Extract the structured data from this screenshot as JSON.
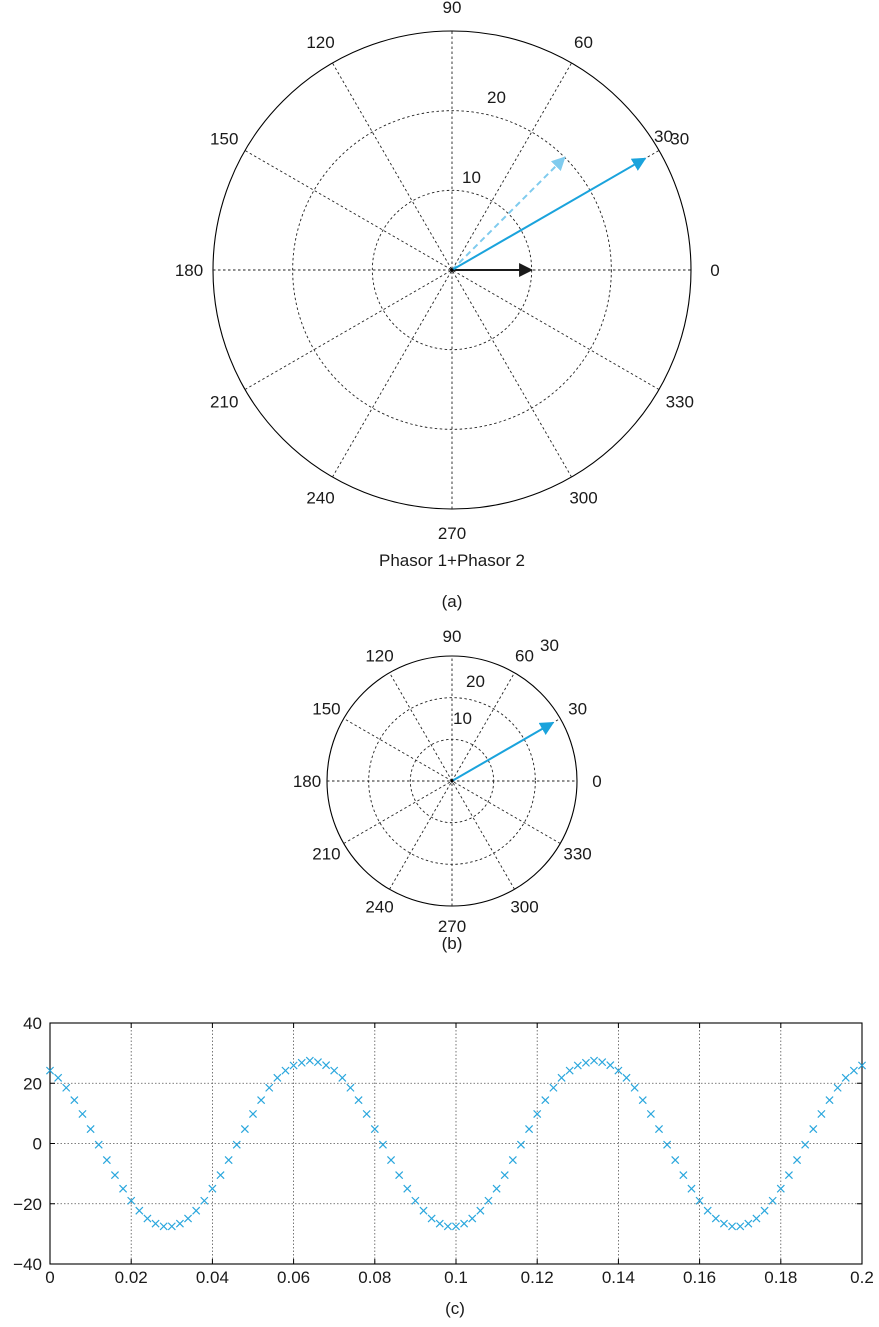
{
  "colors": {
    "phasor_cyan": "#1aa3dc",
    "phasor_light": "#7fcbee",
    "phasor_black": "#1a1a1a",
    "axis": "#000000",
    "grid": "#222222",
    "scatter": "#2ba7dd"
  },
  "chart_data": [
    {
      "id": "a",
      "type": "polar",
      "panel_label": "(a)",
      "title": "Phasor 1+Phasor 2",
      "rmax": 30,
      "rings": [
        10,
        20,
        30
      ],
      "ring_labels": [
        "10",
        "20",
        "30"
      ],
      "angle_labels": [
        "0",
        "30",
        "60",
        "90",
        "120",
        "150",
        "180",
        "210",
        "240",
        "270",
        "300",
        "330"
      ],
      "grid": true,
      "phasors": [
        {
          "magnitude": 10,
          "angle_deg": 0,
          "style": "solid",
          "color": "#1a1a1a"
        },
        {
          "magnitude": 20,
          "angle_deg": 45,
          "style": "dashed",
          "color": "#7fcbee"
        },
        {
          "magnitude": 28,
          "angle_deg": 30,
          "style": "solid",
          "color": "#1aa3dc"
        }
      ]
    },
    {
      "id": "b",
      "type": "polar",
      "panel_label": "(b)",
      "title": "",
      "rmax": 30,
      "rings": [
        10,
        20,
        30
      ],
      "ring_labels": [
        "10",
        "20",
        "30"
      ],
      "angle_labels": [
        "0",
        "30",
        "60",
        "90",
        "120",
        "150",
        "180",
        "210",
        "240",
        "270",
        "300",
        "330"
      ],
      "grid": true,
      "phasors": [
        {
          "magnitude": 28,
          "angle_deg": 30,
          "style": "solid",
          "color": "#1aa3dc"
        }
      ]
    },
    {
      "id": "c",
      "type": "scatter",
      "panel_label": "(c)",
      "title": "",
      "xlabel": "",
      "ylabel": "",
      "xlim": [
        0,
        0.2
      ],
      "ylim": [
        -40,
        40
      ],
      "xticks": [
        0,
        0.02,
        0.04,
        0.06,
        0.08,
        0.1,
        0.12,
        0.14,
        0.16,
        0.18,
        0.2
      ],
      "xtick_labels": [
        "0",
        "0.02",
        "0.04",
        "0.06",
        "0.08",
        "0.1",
        "0.12",
        "0.14",
        "0.16",
        "0.18",
        "0.2"
      ],
      "yticks": [
        -40,
        -20,
        0,
        20,
        40
      ],
      "ytick_labels": [
        "−40",
        "−20",
        "0",
        "20",
        "40"
      ],
      "grid": true,
      "marker": "x",
      "x": [
        0.0,
        0.002,
        0.004,
        0.006,
        0.008,
        0.01,
        0.012,
        0.014,
        0.016,
        0.018,
        0.02,
        0.022,
        0.024,
        0.026,
        0.028,
        0.03,
        0.032,
        0.034,
        0.036,
        0.038,
        0.04,
        0.042,
        0.044,
        0.046,
        0.048,
        0.05,
        0.052,
        0.054,
        0.056,
        0.058,
        0.06,
        0.062,
        0.064,
        0.066,
        0.068,
        0.07,
        0.072,
        0.074,
        0.076,
        0.078,
        0.08,
        0.082,
        0.084,
        0.086,
        0.088,
        0.09,
        0.092,
        0.094,
        0.096,
        0.098,
        0.1,
        0.102,
        0.104,
        0.106,
        0.108,
        0.11,
        0.112,
        0.114,
        0.116,
        0.118,
        0.12,
        0.122,
        0.124,
        0.126,
        0.128,
        0.13,
        0.132,
        0.134,
        0.136,
        0.138,
        0.14,
        0.142,
        0.144,
        0.146,
        0.148,
        0.15,
        0.152,
        0.154,
        0.156,
        0.158,
        0.16,
        0.162,
        0.164,
        0.166,
        0.168,
        0.17,
        0.172,
        0.174,
        0.176,
        0.178,
        0.18,
        0.182,
        0.184,
        0.186,
        0.188,
        0.19,
        0.192,
        0.194,
        0.196,
        0.198,
        0.2
      ],
      "y": [
        24.2,
        21.8,
        18.5,
        14.4,
        9.8,
        4.8,
        -0.4,
        -5.5,
        -10.5,
        -15.0,
        -19.0,
        -22.3,
        -24.9,
        -26.6,
        -27.5,
        -27.5,
        -26.6,
        -24.9,
        -22.3,
        -19.0,
        -15.0,
        -10.5,
        -5.5,
        -0.4,
        4.8,
        9.8,
        14.4,
        18.5,
        21.8,
        24.2,
        25.9,
        26.8,
        27.5,
        27.0,
        26.0,
        24.2,
        21.8,
        18.5,
        14.4,
        9.8,
        4.8,
        -0.4,
        -5.5,
        -10.5,
        -15.0,
        -19.0,
        -22.3,
        -24.9,
        -26.6,
        -27.5,
        -27.5,
        -26.6,
        -24.9,
        -22.3,
        -19.0,
        -15.0,
        -10.5,
        -5.5,
        -0.4,
        4.8,
        9.8,
        14.4,
        18.5,
        21.8,
        24.2,
        25.9,
        26.8,
        27.5,
        27.0,
        26.0,
        24.2,
        21.8,
        18.5,
        14.4,
        9.8,
        4.8,
        -0.4,
        -5.5,
        -10.5,
        -15.0,
        -19.0,
        -22.3,
        -24.9,
        -26.6,
        -27.5,
        -27.5,
        -26.6,
        -24.9,
        -22.3,
        -19.0,
        -15.0,
        -10.5,
        -5.5,
        -0.4,
        4.8,
        9.8,
        14.4,
        18.5,
        21.8,
        24.2,
        25.9
      ]
    }
  ]
}
